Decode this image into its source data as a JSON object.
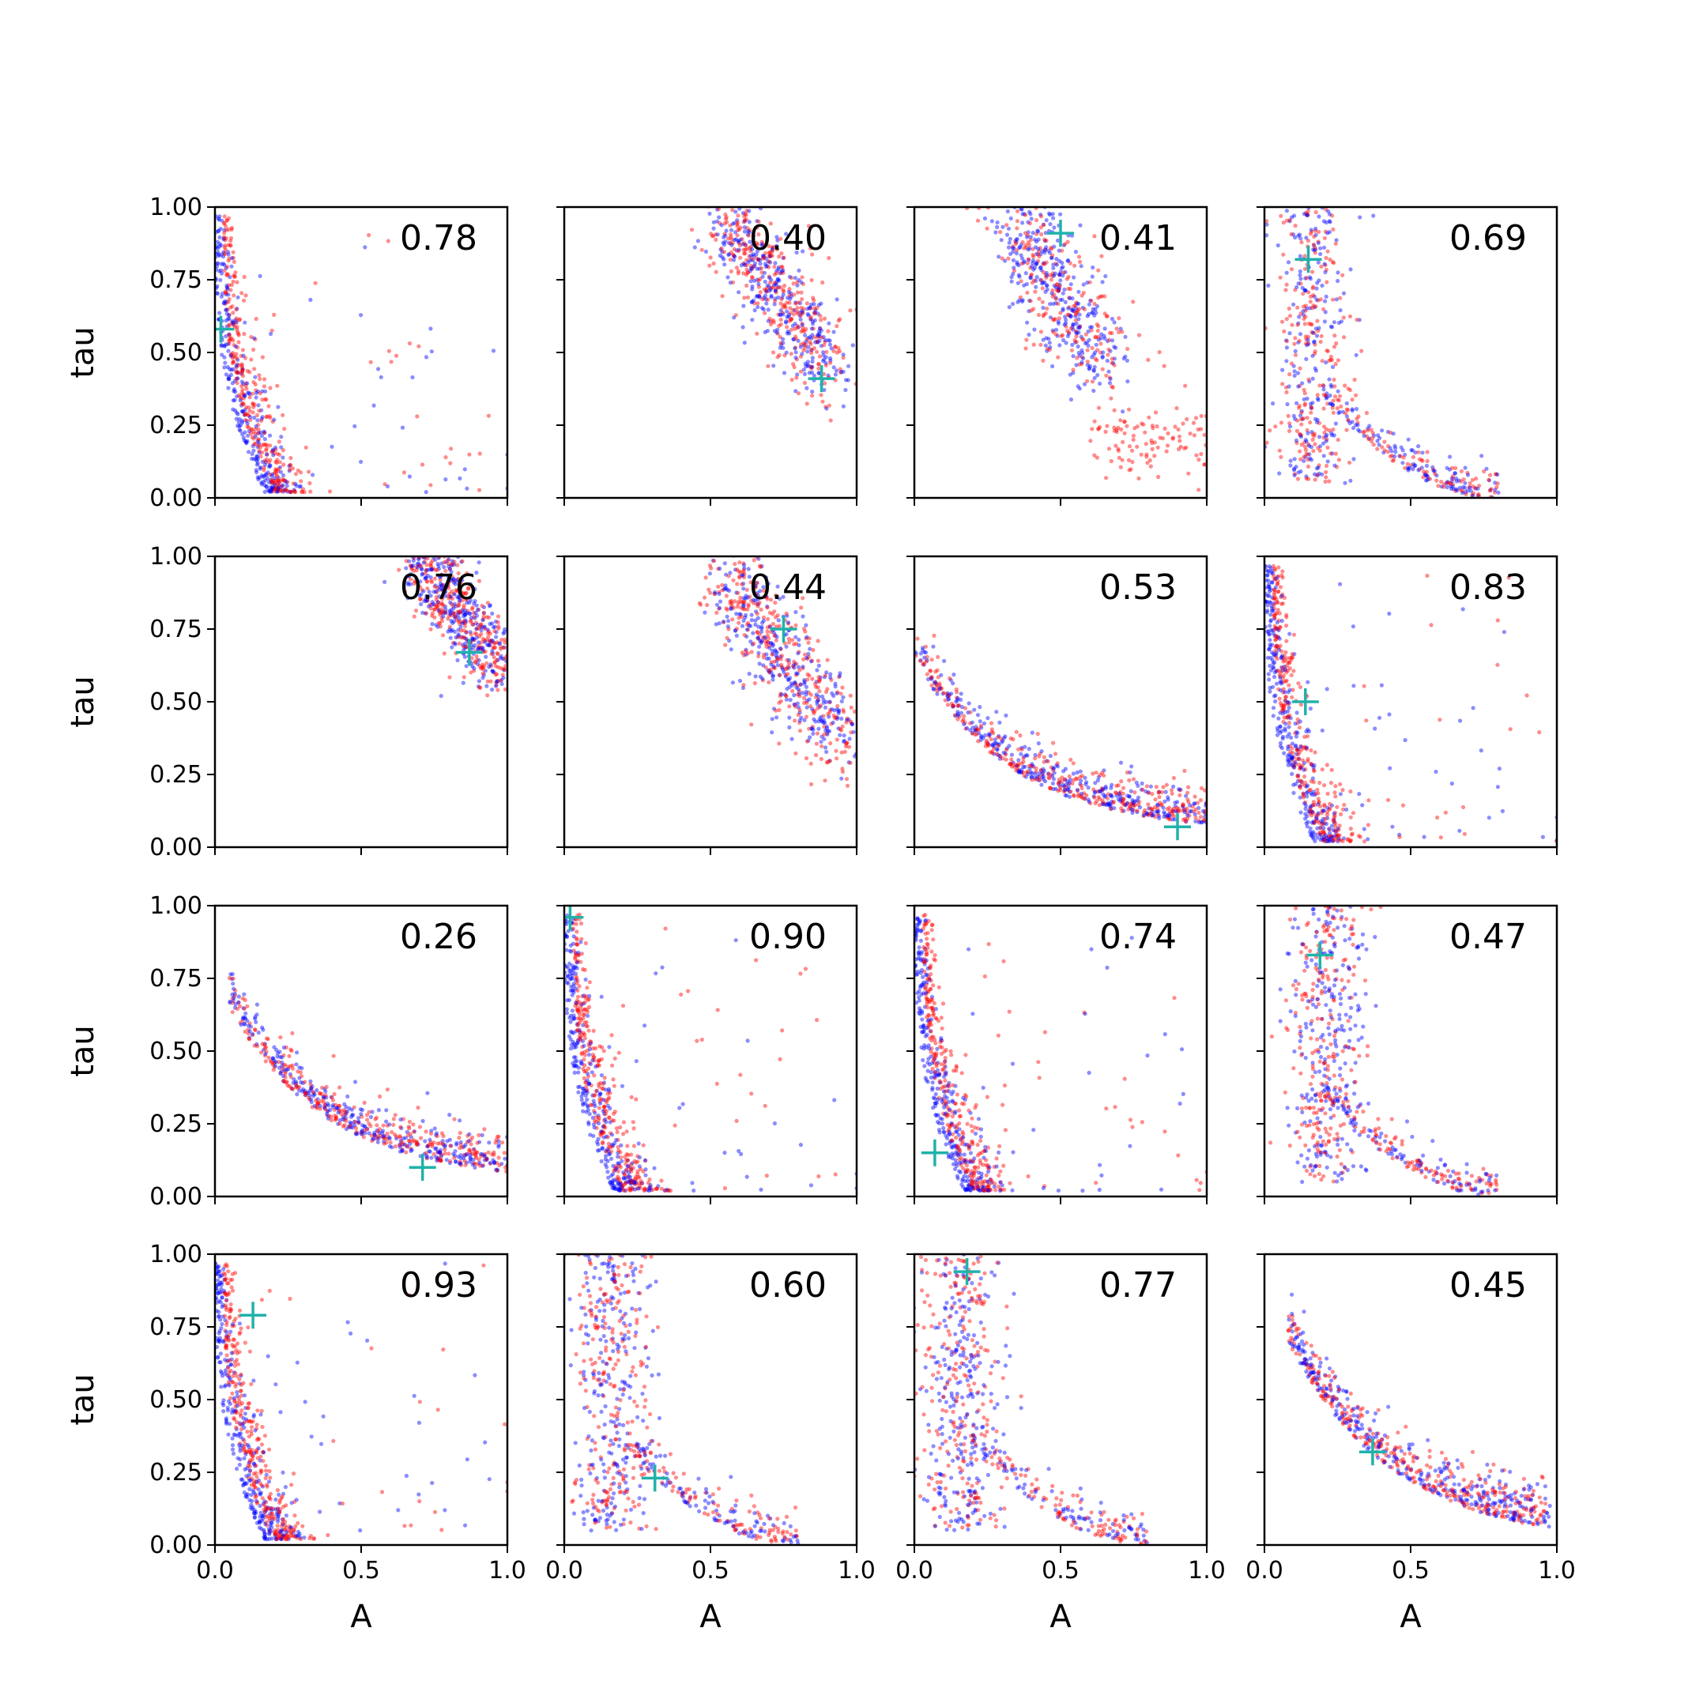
{
  "chart_data": {
    "type": "scatter",
    "layout": {
      "rows": 4,
      "cols": 4,
      "sharex": true,
      "sharey": true
    },
    "xlabel": "A",
    "ylabel": "tau",
    "xlim": [
      0.0,
      1.0
    ],
    "ylim": [
      0.0,
      1.0
    ],
    "xticks": [
      "0.0",
      "0.5",
      "1.0"
    ],
    "yticks": [
      "0.00",
      "0.25",
      "0.50",
      "0.75",
      "1.00"
    ],
    "grid": false,
    "colors": {
      "cloud_a": "#ff0000",
      "cloud_b": "#0000ff",
      "marker": "#20b2aa"
    },
    "panels": [
      {
        "label": "0.78",
        "marker": [
          0.02,
          0.58
        ]
      },
      {
        "label": "0.40",
        "marker": [
          0.88,
          0.41
        ]
      },
      {
        "label": "0.41",
        "marker": [
          0.5,
          0.91
        ]
      },
      {
        "label": "0.69",
        "marker": [
          0.15,
          0.82
        ]
      },
      {
        "label": "0.76",
        "marker": [
          0.87,
          0.67
        ]
      },
      {
        "label": "0.44",
        "marker": [
          0.75,
          0.75
        ]
      },
      {
        "label": "0.53",
        "marker": [
          0.9,
          0.07
        ]
      },
      {
        "label": "0.83",
        "marker": [
          0.14,
          0.5
        ]
      },
      {
        "label": "0.26",
        "marker": [
          0.71,
          0.1
        ]
      },
      {
        "label": "0.90",
        "marker": [
          0.02,
          0.96
        ]
      },
      {
        "label": "0.74",
        "marker": [
          0.07,
          0.15
        ]
      },
      {
        "label": "0.47",
        "marker": [
          0.19,
          0.83
        ]
      },
      {
        "label": "0.93",
        "marker": [
          0.13,
          0.79
        ]
      },
      {
        "label": "0.60",
        "marker": [
          0.31,
          0.23
        ]
      },
      {
        "label": "0.77",
        "marker": [
          0.18,
          0.94
        ]
      },
      {
        "label": "0.45",
        "marker": [
          0.37,
          0.32
        ]
      }
    ]
  }
}
